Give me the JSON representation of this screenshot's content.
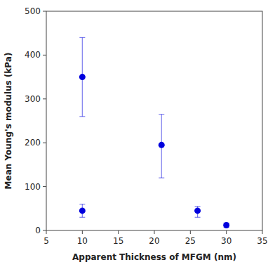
{
  "chart_data": {
    "type": "scatter",
    "xlabel": "Apparent Thickness of MFGM (nm)",
    "ylabel": "Mean Young's modulus (kPa)",
    "x": [
      10,
      10,
      21,
      26,
      30
    ],
    "values": [
      350,
      45,
      195,
      45,
      12
    ],
    "yerr_lower": [
      90,
      15,
      75,
      15,
      5
    ],
    "yerr_upper": [
      90,
      15,
      70,
      10,
      5
    ],
    "color": "#0000dd",
    "marker": "circle",
    "xlim": [
      5,
      35
    ],
    "ylim": [
      0,
      500
    ],
    "xticks": [
      5,
      10,
      15,
      20,
      25,
      30,
      35
    ],
    "yticks": [
      0,
      100,
      200,
      300,
      400,
      500
    ],
    "grid": false
  }
}
